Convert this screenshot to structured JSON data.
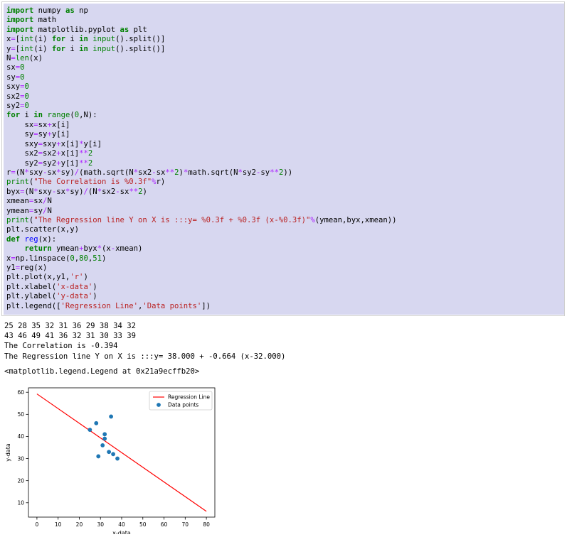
{
  "code_lines": [
    "import numpy as np",
    "import math",
    "import matplotlib.pyplot as plt",
    "x=[int(i) for i in input().split()]",
    "y=[int(i) for i in input().split()]",
    "N=len(x)",
    "sx=0",
    "sy=0",
    "sxy=0",
    "sx2=0",
    "sy2=0",
    "for i in range(0,N):",
    "    sx=sx+x[i]",
    "    sy=sy+y[i]",
    "    sxy=sxy+x[i]*y[i]",
    "    sx2=sx2+x[i]**2",
    "    sy2=sy2+y[i]**2",
    "r=(N*sxy-sx*sy)/(math.sqrt(N*sx2-sx**2)*math.sqrt(N*sy2-sy**2))",
    "print(\"The Correlation is %0.3f\"%r)",
    "byx=(N*sxy-sx*sy)/(N*sx2-sx**2)",
    "xmean=sx/N",
    "ymean=sy/N",
    "print(\"The Regression line Y on X is :::y= %0.3f + %0.3f (x-%0.3f)\"%(ymean,byx,xmean))",
    "plt.scatter(x,y)",
    "def reg(x):",
    "    return ymean+byx*(x-xmean)",
    "x=np.linspace(0,80,51)",
    "y1=reg(x)",
    "plt.plot(x,y1,'r')",
    "plt.xlabel('x-data')",
    "plt.ylabel('y-data')",
    "plt.legend(['Regression Line','Data points'])"
  ],
  "output": {
    "line1": "25 28 35 32 31 36 29 38 34 32",
    "line2": "43 46 49 41 36 32 31 30 33 39",
    "line3": "The Correlation is -0.394",
    "line4": "The Regression line Y on X is :::y= 38.000 + -0.664 (x-32.000)",
    "legend_repr": "<matplotlib.legend.Legend at 0x21a9ecffb20>"
  },
  "chart_data": {
    "type": "scatter",
    "xlabel": "x-data",
    "ylabel": "y-data",
    "xlim": [
      -4,
      84
    ],
    "ylim": [
      3.5,
      62
    ],
    "xticks": [
      0,
      10,
      20,
      30,
      40,
      50,
      60,
      70,
      80
    ],
    "yticks": [
      10,
      20,
      30,
      40,
      50,
      60
    ],
    "grid": false,
    "legend_position": "top-right",
    "series": [
      {
        "name": "Regression Line",
        "kind": "line",
        "color": "#ff0000",
        "x": [
          0,
          80
        ],
        "y": [
          59.248,
          6.128
        ]
      },
      {
        "name": "Data points",
        "kind": "scatter",
        "color": "#1f77b4",
        "x": [
          25,
          28,
          35,
          32,
          31,
          36,
          29,
          38,
          34,
          32
        ],
        "y": [
          43,
          46,
          49,
          41,
          36,
          32,
          31,
          30,
          33,
          39
        ]
      }
    ]
  }
}
